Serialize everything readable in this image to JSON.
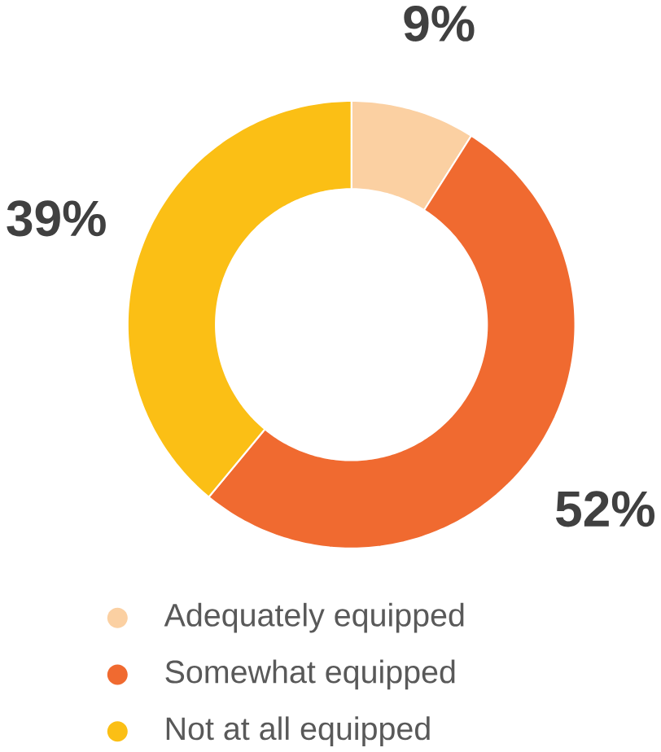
{
  "chart_data": {
    "type": "donut",
    "categories": [
      "Adequately equipped",
      "Somewhat equipped",
      "Not at all equipped"
    ],
    "values": [
      9,
      52,
      39
    ],
    "colors": [
      "#fbd0a2",
      "#f06a30",
      "#fbbf15"
    ],
    "value_labels": [
      "9%",
      "52%",
      "39%"
    ],
    "legend": "bottom"
  }
}
